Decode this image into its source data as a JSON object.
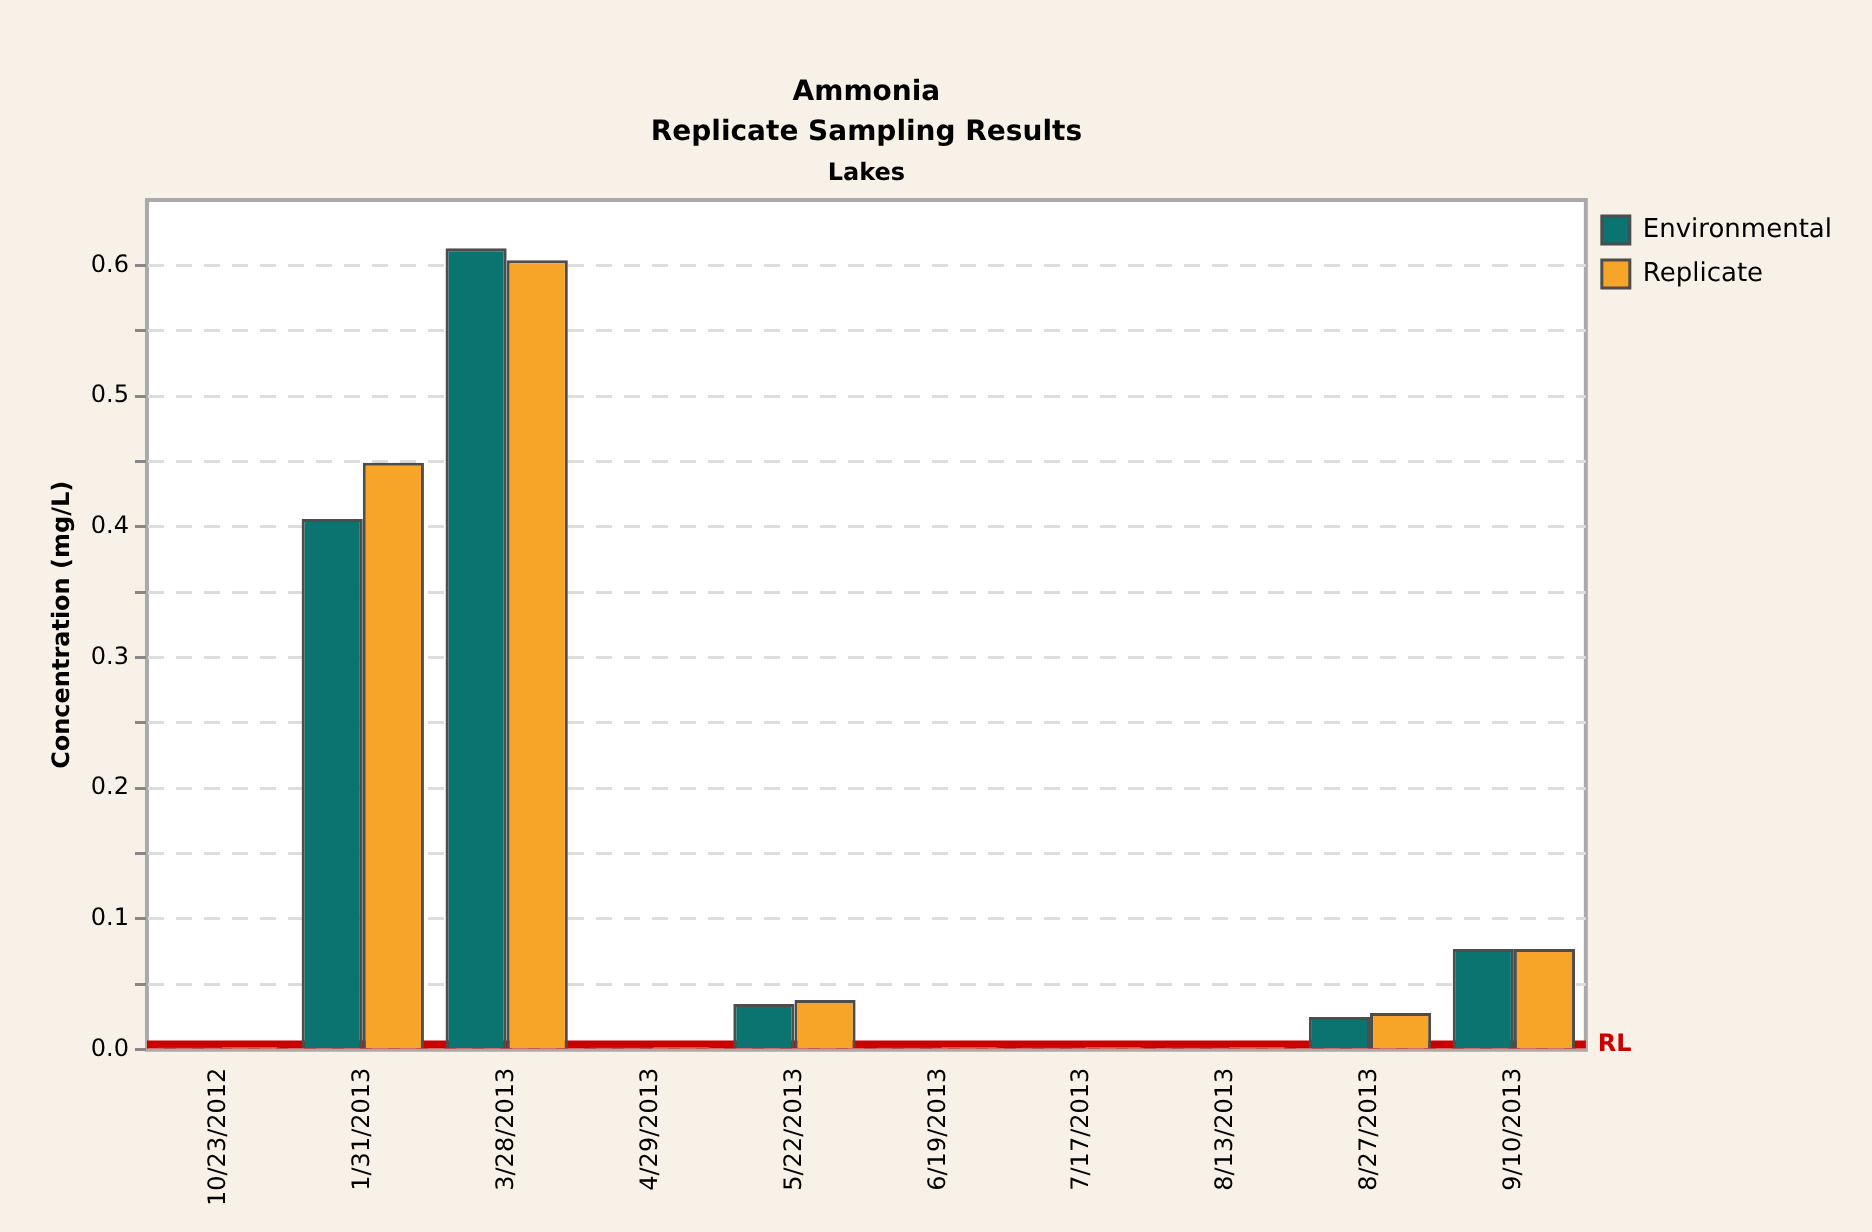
{
  "chart_data": {
    "type": "bar",
    "title": "Ammonia",
    "subtitle": "Replicate Sampling Results",
    "annotations": [
      "Lakes"
    ],
    "ylabel": "Concentration (mg/L)",
    "categories": [
      "10/23/2012",
      "1/31/2013",
      "3/28/2013",
      "4/29/2013",
      "5/22/2013",
      "6/19/2013",
      "7/17/2013",
      "8/13/2013",
      "8/27/2013",
      "9/10/2013"
    ],
    "series": [
      {
        "name": "Environmental",
        "color": "#0b7370",
        "values": [
          0.002,
          0.406,
          0.613,
          0.002,
          0.035,
          0.002,
          0.002,
          0.002,
          0.025,
          0.077
        ]
      },
      {
        "name": "Replicate",
        "color": "#f7a528",
        "values": [
          0.002,
          0.449,
          0.604,
          0.002,
          0.038,
          0.002,
          0.002,
          0.002,
          0.028,
          0.077
        ]
      }
    ],
    "ylim": [
      0,
      0.65
    ],
    "yticks": [
      {
        "value": 0,
        "label": "0.0"
      },
      {
        "value": 0.05,
        "label": null
      },
      {
        "value": 0.1,
        "label": "0.1"
      },
      {
        "value": 0.15,
        "label": null
      },
      {
        "value": 0.2,
        "label": "0.2"
      },
      {
        "value": 0.25,
        "label": null
      },
      {
        "value": 0.3,
        "label": "0.3"
      },
      {
        "value": 0.35,
        "label": null
      },
      {
        "value": 0.4,
        "label": "0.4"
      },
      {
        "value": 0.45,
        "label": null
      },
      {
        "value": 0.5,
        "label": "0.5"
      },
      {
        "value": 0.55,
        "label": null
      },
      {
        "value": 0.6,
        "label": "0.6"
      }
    ],
    "ref_lines": [
      {
        "axis": "y",
        "value": 0.004,
        "label": "RL",
        "color": "#cc0000"
      }
    ],
    "grid": "y",
    "legend": "top right"
  }
}
